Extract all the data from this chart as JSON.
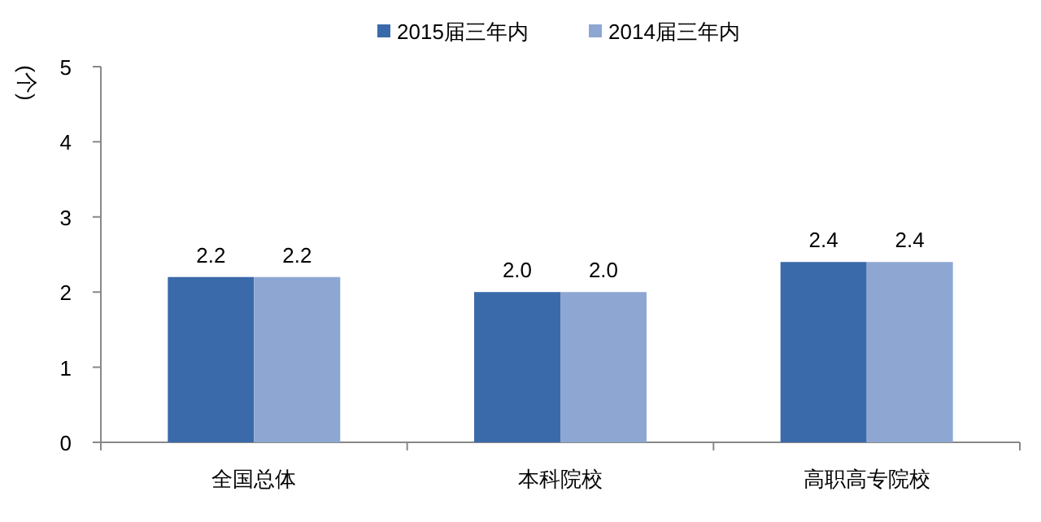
{
  "chart_data": {
    "type": "bar",
    "ylabel": "(个)",
    "categories": [
      "全国总体",
      "本科院校",
      "高职高专院校"
    ],
    "series": [
      {
        "name": "2015届三年内",
        "color": "#3a6aa9",
        "values": [
          2.2,
          2.0,
          2.4
        ],
        "value_labels": [
          "2.2",
          "2.0",
          "2.4"
        ]
      },
      {
        "name": "2014届三年内",
        "color": "#8ea7d2",
        "values": [
          2.2,
          2.0,
          2.4
        ],
        "value_labels": [
          "2.2",
          "2.0",
          "2.4"
        ]
      }
    ],
    "ylim": [
      0,
      5
    ],
    "yticks": [
      0,
      1,
      2,
      3,
      4,
      5
    ],
    "grid": false,
    "legend": "top"
  }
}
